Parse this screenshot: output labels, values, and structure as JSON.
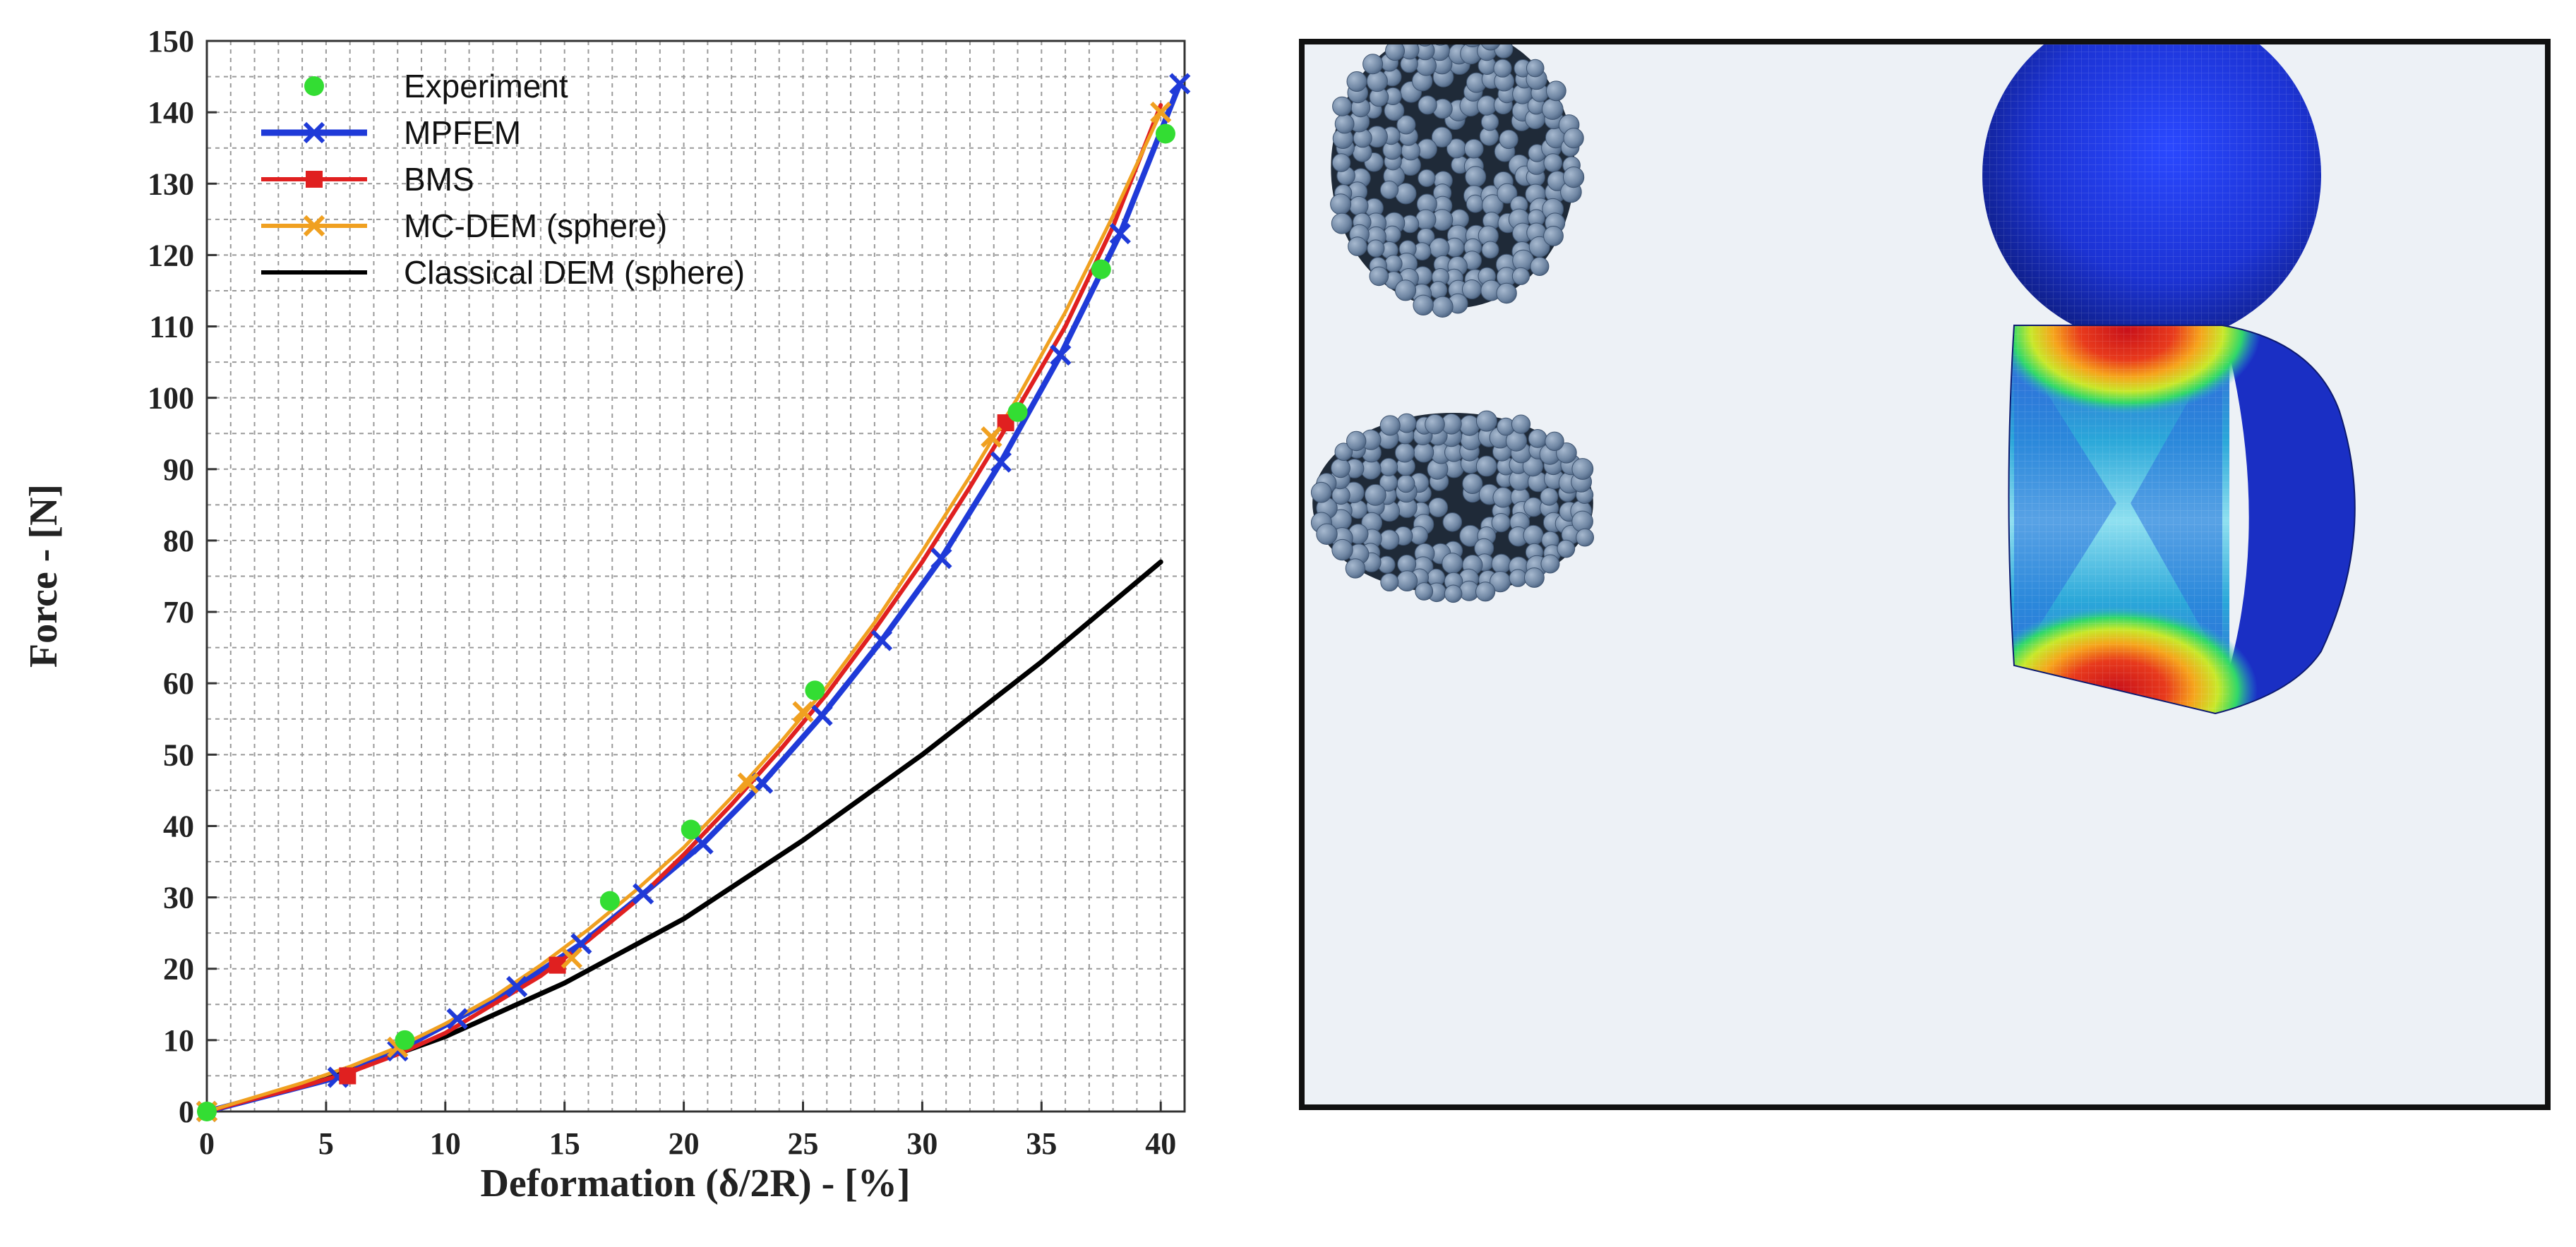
{
  "chart_data": {
    "type": "line",
    "xlabel": "Deformation (δ/2R) - [%]",
    "ylabel": "Force - [N]",
    "xlim": [
      0,
      41
    ],
    "ylim": [
      0,
      150
    ],
    "xticks": [
      0,
      5,
      10,
      15,
      20,
      25,
      30,
      35,
      40
    ],
    "yticks": [
      0,
      10,
      20,
      30,
      40,
      50,
      60,
      70,
      80,
      90,
      100,
      110,
      120,
      130,
      140,
      150
    ],
    "grid": true,
    "legend_position": "top-left",
    "series": [
      {
        "name": "Experiment",
        "color": "#33dd33",
        "marker": "circle",
        "line": false,
        "x": [
          0,
          8.3,
          16.9,
          20.3,
          25.5,
          34,
          37.5,
          40.2
        ],
        "y": [
          0,
          10,
          29.5,
          39.5,
          59,
          98,
          118,
          137
        ]
      },
      {
        "name": "MPFEM",
        "color": "#1f3ad8",
        "marker": "x",
        "line": true,
        "x": [
          0,
          5.5,
          8,
          10.5,
          13,
          15.7,
          18.3,
          20.8,
          23.3,
          25.8,
          28.3,
          30.8,
          33.3,
          35.8,
          38.3,
          40.8
        ],
        "y": [
          0,
          4.8,
          8.5,
          13,
          17.5,
          23.5,
          30.5,
          37.5,
          46,
          55.5,
          66,
          77.5,
          91,
          106,
          123,
          144
        ]
      },
      {
        "name": "BMS",
        "color": "#e02020",
        "marker": "square",
        "line": true,
        "x": [
          0,
          2,
          4,
          6,
          8,
          10,
          12,
          14,
          16,
          18,
          20,
          22,
          24,
          26,
          28,
          30,
          32,
          34,
          36,
          38,
          40
        ],
        "y": [
          0,
          1.8,
          3.5,
          5.5,
          8,
          11,
          15,
          19,
          24,
          29.5,
          36,
          43,
          50.5,
          58.5,
          67.5,
          77,
          87.5,
          98.5,
          110,
          124,
          141
        ],
        "marker_x": [
          0,
          5.9,
          14.7,
          33.5
        ],
        "marker_y": [
          0,
          5,
          20.5,
          96.5
        ]
      },
      {
        "name": "MC-DEM (sphere)",
        "color": "#f0a020",
        "marker": "x",
        "line": true,
        "x": [
          0,
          2,
          4,
          6,
          8,
          10,
          12,
          14,
          16,
          18,
          20,
          22,
          24,
          26,
          28,
          30,
          32,
          34,
          36,
          38,
          40
        ],
        "y": [
          0,
          2,
          4,
          6.3,
          9,
          12.3,
          16,
          20.5,
          25.5,
          31,
          37,
          44,
          51.5,
          59.5,
          68.5,
          78.5,
          89,
          100,
          112,
          125.5,
          140
        ],
        "marker_x": [
          0,
          8,
          15.3,
          22.7,
          25,
          32.9,
          40
        ],
        "marker_y": [
          0,
          9,
          21.5,
          46,
          56,
          94.5,
          140
        ]
      },
      {
        "name": "Classical DEM (sphere)",
        "color": "#000000",
        "marker": "none",
        "line": true,
        "x": [
          0,
          5,
          10,
          15,
          20,
          25,
          30,
          35,
          40
        ],
        "y": [
          0,
          4.5,
          10.5,
          18,
          27,
          38,
          50,
          63,
          77
        ]
      }
    ]
  },
  "figure_panel": {
    "top_left": "Particle assembly (undeformed)",
    "top_right": "FEM sphere mesh (undeformed)",
    "bottom_left": "Particle assembly (compressed)",
    "bottom_right": "FEM section with stress contours"
  },
  "colors": {
    "panel_background": "#edf1f6",
    "particle": "#7b90a9",
    "fem_blue": "#1a2fc4"
  }
}
